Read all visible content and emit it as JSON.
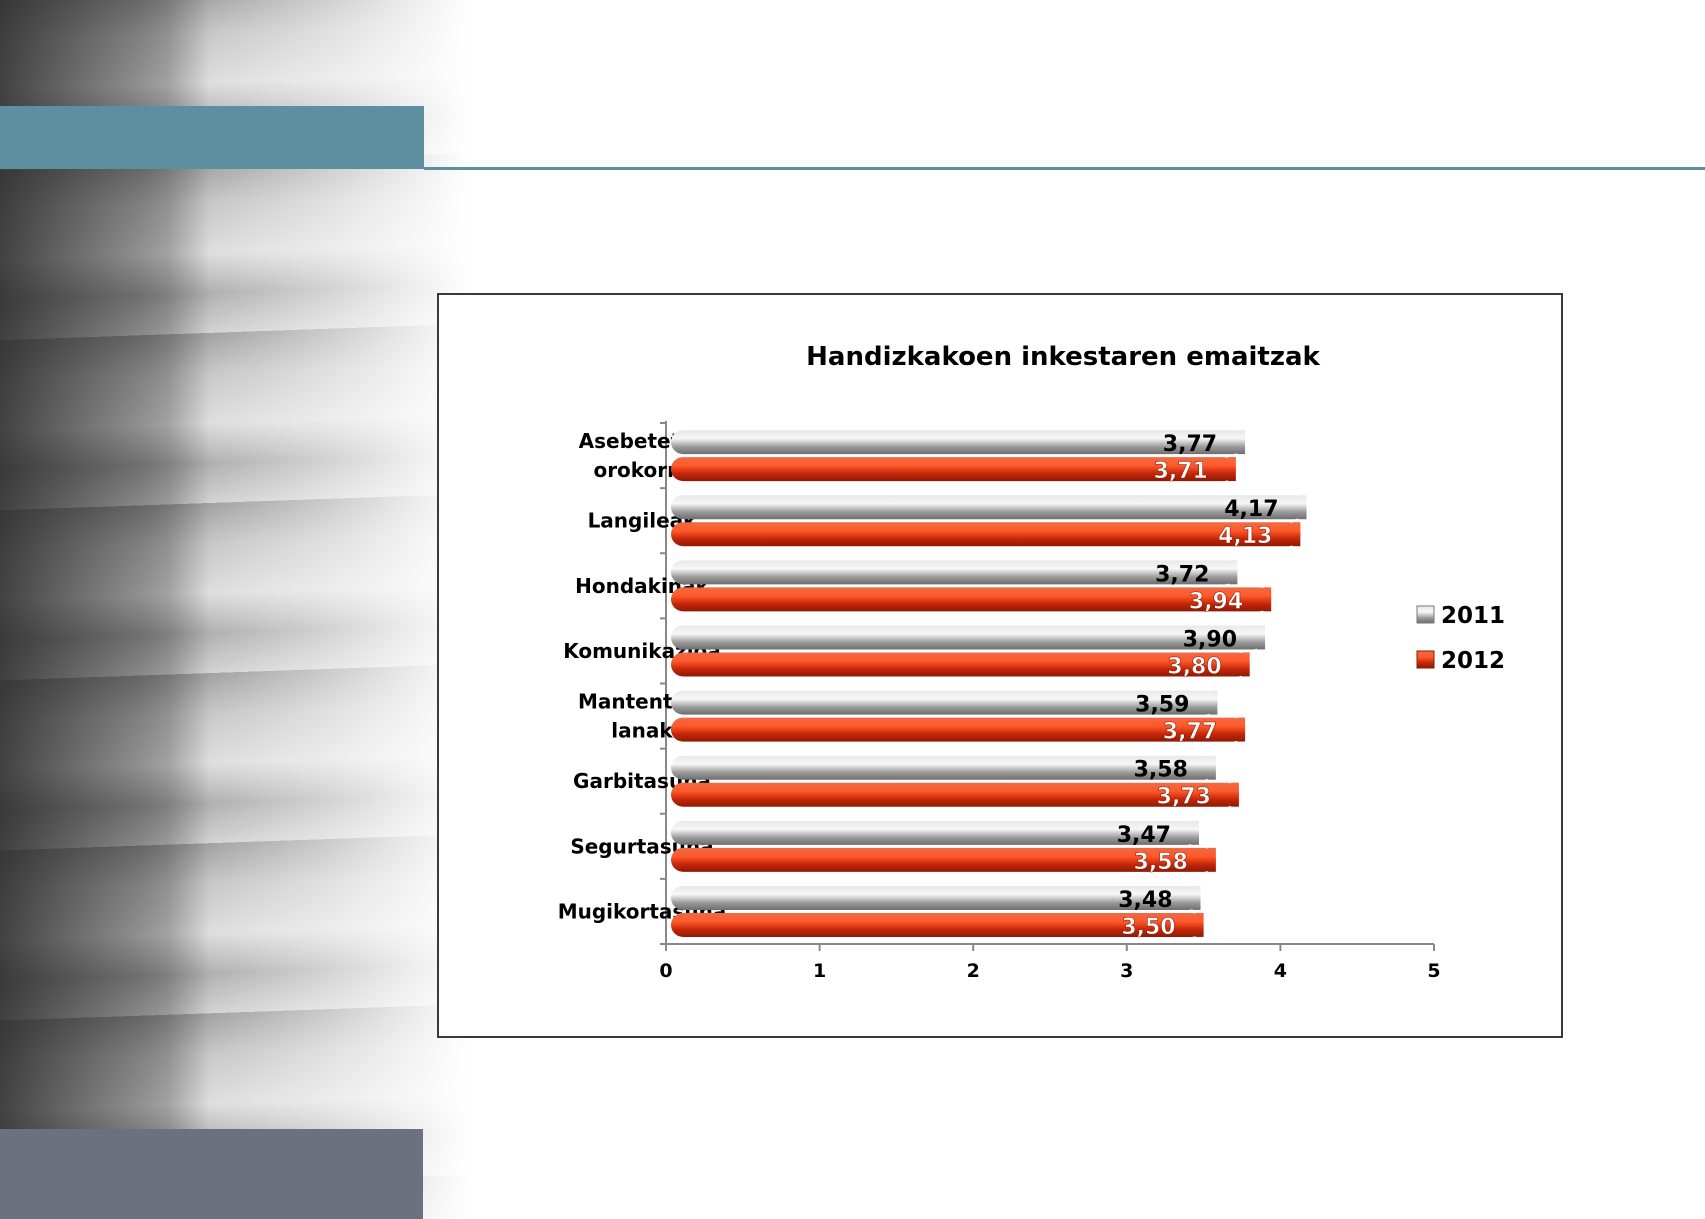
{
  "chart_data": {
    "type": "bar",
    "orientation": "horizontal",
    "title": "Handizkakoen inkestaren emaitzak",
    "categories": [
      [
        "Asebetetze",
        "orokorra"
      ],
      [
        "Langileak"
      ],
      [
        "Hondakinak"
      ],
      [
        "Komunikazioa"
      ],
      [
        "Mantentze-",
        "lanak"
      ],
      [
        "Garbitasuna"
      ],
      [
        "Segurtasuna"
      ],
      [
        "Mugikortasuna"
      ]
    ],
    "series": [
      {
        "name": "2011",
        "color": "#b8b8b8",
        "values": [
          3.77,
          4.17,
          3.72,
          3.9,
          3.59,
          3.58,
          3.47,
          3.48
        ],
        "labels": [
          "3,77",
          "4,17",
          "3,72",
          "3,90",
          "3,59",
          "3,58",
          "3,47",
          "3,48"
        ]
      },
      {
        "name": "2012",
        "color": "#e23a12",
        "values": [
          3.71,
          4.13,
          3.94,
          3.8,
          3.77,
          3.73,
          3.58,
          3.5
        ],
        "labels": [
          "3,71",
          "4,13",
          "3,94",
          "3,80",
          "3,77",
          "3,73",
          "3,58",
          "3,50"
        ]
      }
    ],
    "xlim": [
      0,
      5
    ],
    "xticks": [
      "0",
      "1",
      "2",
      "3",
      "4",
      "5"
    ],
    "grid": false,
    "legend_position": "right"
  },
  "colors": {
    "accent_bar": "#5e8fa0",
    "bottom_bar": "#6b717f"
  }
}
